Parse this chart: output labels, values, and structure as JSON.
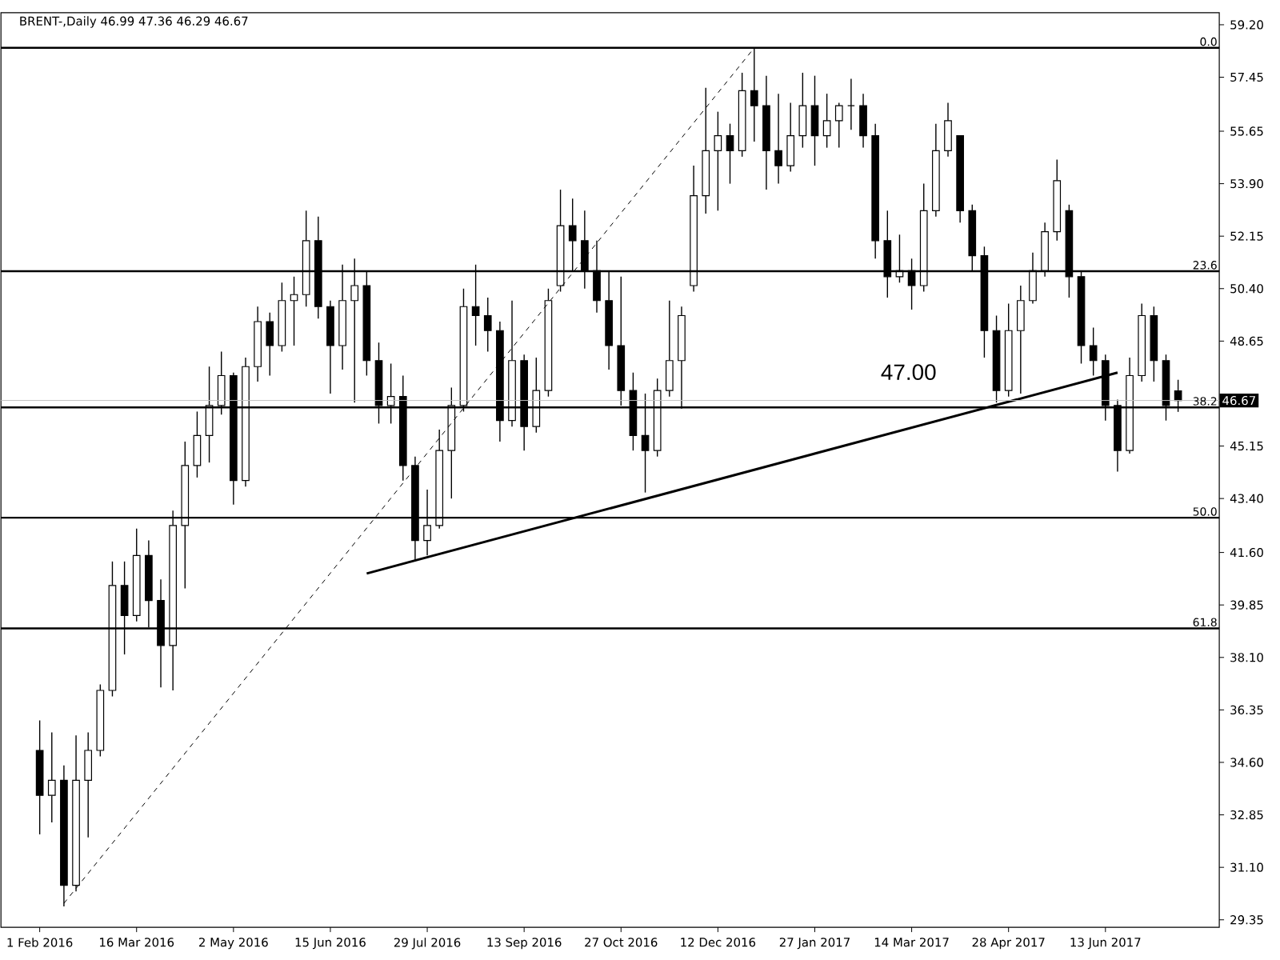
{
  "chart_data": {
    "type": "candlestick",
    "title": "BRENT-,Daily 46.99 47.36 46.29 46.67",
    "categories": [
      "1 Feb 2016",
      null,
      null,
      null,
      null,
      null,
      null,
      null,
      "16 Mar 2016",
      null,
      null,
      null,
      null,
      null,
      null,
      null,
      "2 May 2016",
      null,
      null,
      null,
      null,
      null,
      null,
      null,
      "15 Jun 2016",
      null,
      null,
      null,
      null,
      null,
      null,
      null,
      "29 Jul 2016",
      null,
      null,
      null,
      null,
      null,
      null,
      null,
      "13 Sep 2016",
      null,
      null,
      null,
      null,
      null,
      null,
      null,
      "27 Oct 2016",
      null,
      null,
      null,
      null,
      null,
      null,
      null,
      "12 Dec 2016",
      null,
      null,
      null,
      null,
      null,
      null,
      null,
      "27 Jan 2017",
      null,
      null,
      null,
      null,
      null,
      null,
      null,
      "14 Mar 2017",
      null,
      null,
      null,
      null,
      null,
      null,
      null,
      "28 Apr 2017",
      null,
      null,
      null,
      null,
      null,
      null,
      null,
      "13 Jun 2017",
      null,
      null,
      null,
      null,
      null,
      null
    ],
    "series": [
      {
        "color": "#000000",
        "ohlc": [
          [
            35.0,
            36.0,
            32.2,
            33.5
          ],
          [
            33.5,
            35.6,
            32.6,
            34.0
          ],
          [
            34.0,
            34.5,
            29.8,
            30.5
          ],
          [
            30.5,
            35.5,
            30.3,
            34.0
          ],
          [
            34.0,
            35.6,
            32.1,
            35.0
          ],
          [
            35.0,
            37.2,
            34.8,
            37.0
          ],
          [
            37.0,
            41.3,
            36.8,
            40.5
          ],
          [
            40.5,
            41.3,
            38.2,
            39.5
          ],
          [
            39.5,
            42.4,
            39.3,
            41.5
          ],
          [
            41.5,
            42.0,
            39.1,
            40.0
          ],
          [
            40.0,
            40.7,
            37.1,
            38.5
          ],
          [
            38.5,
            43.0,
            37.0,
            42.5
          ],
          [
            42.5,
            45.3,
            40.4,
            44.5
          ],
          [
            44.5,
            46.3,
            44.1,
            45.5
          ],
          [
            45.5,
            47.8,
            44.6,
            46.5
          ],
          [
            46.5,
            48.3,
            46.2,
            47.5
          ],
          [
            47.5,
            47.6,
            43.2,
            44.0
          ],
          [
            44.0,
            48.1,
            43.8,
            47.8
          ],
          [
            47.8,
            49.8,
            47.3,
            49.3
          ],
          [
            49.3,
            49.6,
            47.5,
            48.5
          ],
          [
            48.5,
            50.6,
            48.3,
            50.0
          ],
          [
            50.0,
            50.8,
            48.5,
            50.2
          ],
          [
            50.2,
            53.0,
            49.8,
            52.0
          ],
          [
            52.0,
            52.8,
            49.4,
            49.8
          ],
          [
            49.8,
            50.0,
            46.9,
            48.5
          ],
          [
            48.5,
            51.2,
            47.7,
            50.0
          ],
          [
            50.0,
            51.4,
            46.6,
            50.5
          ],
          [
            50.5,
            51.0,
            47.5,
            48.0
          ],
          [
            48.0,
            48.6,
            45.9,
            46.5
          ],
          [
            46.5,
            47.9,
            45.9,
            46.8
          ],
          [
            46.8,
            47.5,
            44.0,
            44.5
          ],
          [
            44.5,
            44.8,
            41.3,
            42.0
          ],
          [
            42.0,
            43.7,
            41.5,
            42.5
          ],
          [
            42.5,
            45.7,
            42.4,
            45.0
          ],
          [
            45.0,
            47.1,
            43.4,
            46.5
          ],
          [
            46.5,
            50.4,
            46.3,
            49.8
          ],
          [
            49.8,
            51.2,
            48.5,
            49.5
          ],
          [
            49.5,
            50.1,
            48.3,
            49.0
          ],
          [
            49.0,
            49.3,
            45.3,
            46.0
          ],
          [
            46.0,
            50.0,
            45.8,
            48.0
          ],
          [
            48.0,
            48.2,
            45.0,
            45.8
          ],
          [
            45.8,
            48.1,
            45.6,
            47.0
          ],
          [
            47.0,
            50.4,
            46.8,
            50.0
          ],
          [
            50.5,
            53.7,
            50.3,
            52.5
          ],
          [
            52.5,
            53.4,
            51.0,
            52.0
          ],
          [
            52.0,
            53.0,
            50.4,
            51.0
          ],
          [
            51.0,
            52.0,
            49.6,
            50.0
          ],
          [
            50.0,
            51.0,
            47.7,
            48.5
          ],
          [
            48.5,
            50.8,
            46.5,
            47.0
          ],
          [
            47.0,
            47.6,
            45.0,
            45.5
          ],
          [
            45.5,
            46.9,
            43.6,
            45.0
          ],
          [
            45.0,
            47.4,
            44.8,
            47.0
          ],
          [
            47.0,
            50.0,
            46.8,
            48.0
          ],
          [
            48.0,
            49.8,
            46.4,
            49.5
          ],
          [
            50.5,
            54.5,
            50.3,
            53.5
          ],
          [
            53.5,
            57.1,
            52.9,
            55.0
          ],
          [
            55.0,
            56.3,
            53.0,
            55.5
          ],
          [
            55.5,
            55.9,
            53.9,
            55.0
          ],
          [
            55.0,
            57.6,
            54.8,
            57.0
          ],
          [
            57.0,
            58.4,
            55.3,
            56.5
          ],
          [
            56.5,
            57.5,
            53.7,
            55.0
          ],
          [
            55.0,
            56.9,
            53.9,
            54.5
          ],
          [
            54.5,
            56.6,
            54.3,
            55.5
          ],
          [
            55.5,
            57.6,
            55.1,
            56.5
          ],
          [
            56.5,
            57.5,
            54.5,
            55.5
          ],
          [
            55.5,
            56.9,
            55.1,
            56.0
          ],
          [
            56.0,
            56.6,
            55.1,
            56.5
          ],
          [
            56.5,
            57.4,
            55.7,
            56.5
          ],
          [
            56.5,
            56.9,
            55.1,
            55.5
          ],
          [
            55.5,
            55.9,
            51.4,
            52.0
          ],
          [
            52.0,
            53.0,
            50.1,
            50.8
          ],
          [
            50.8,
            52.2,
            50.6,
            51.0
          ],
          [
            51.0,
            51.4,
            49.7,
            50.5
          ],
          [
            50.5,
            53.9,
            50.3,
            53.0
          ],
          [
            53.0,
            55.9,
            52.8,
            55.0
          ],
          [
            55.0,
            56.6,
            54.8,
            56.0
          ],
          [
            55.5,
            55.5,
            52.6,
            53.0
          ],
          [
            53.0,
            53.2,
            51.0,
            51.5
          ],
          [
            51.5,
            51.8,
            48.1,
            49.0
          ],
          [
            49.0,
            49.5,
            46.6,
            47.0
          ],
          [
            47.0,
            49.9,
            46.8,
            49.0
          ],
          [
            49.0,
            50.5,
            46.9,
            50.0
          ],
          [
            50.0,
            51.6,
            49.9,
            51.0
          ],
          [
            51.0,
            52.6,
            50.8,
            52.3
          ],
          [
            52.3,
            54.7,
            52.0,
            54.0
          ],
          [
            53.0,
            53.2,
            50.1,
            50.8
          ],
          [
            50.8,
            51.0,
            47.9,
            48.5
          ],
          [
            48.5,
            49.1,
            47.5,
            48.0
          ],
          [
            48.0,
            48.2,
            46.0,
            46.5
          ],
          [
            46.5,
            46.7,
            44.3,
            45.0
          ],
          [
            45.0,
            48.1,
            44.9,
            47.5
          ],
          [
            47.5,
            49.9,
            47.3,
            49.5
          ],
          [
            49.5,
            49.8,
            47.3,
            48.0
          ],
          [
            48.0,
            48.2,
            46.0,
            46.5
          ],
          [
            46.99,
            47.36,
            46.29,
            46.67
          ]
        ]
      },
      {
        "type": "line",
        "color": "#000000",
        "line_style": "solid",
        "values": [
          null,
          null,
          null,
          null,
          null,
          null,
          null,
          null,
          null,
          null,
          null,
          null,
          null,
          null,
          null,
          null,
          null,
          null,
          null,
          null,
          null,
          null,
          null,
          null,
          null,
          null,
          null,
          40.9,
          null,
          null,
          null,
          null,
          null,
          null,
          null,
          null,
          null,
          null,
          null,
          null,
          null,
          null,
          null,
          null,
          null,
          null,
          null,
          null,
          null,
          null,
          null,
          null,
          null,
          null,
          null,
          null,
          null,
          null,
          null,
          null,
          null,
          null,
          null,
          null,
          null,
          null,
          null,
          null,
          null,
          null,
          null,
          null,
          null,
          null,
          null,
          null,
          null,
          null,
          null,
          null,
          null,
          null,
          null,
          null,
          null,
          null,
          null,
          null,
          null,
          47.6,
          null,
          null,
          null,
          null,
          null
        ]
      },
      {
        "type": "line",
        "color": "#000000",
        "line_style": "dashed",
        "values": [
          null,
          null,
          29.9,
          null,
          null,
          null,
          null,
          null,
          null,
          null,
          null,
          null,
          null,
          null,
          null,
          null,
          null,
          null,
          null,
          null,
          null,
          null,
          null,
          null,
          null,
          null,
          null,
          null,
          null,
          null,
          null,
          null,
          null,
          null,
          null,
          null,
          null,
          null,
          null,
          null,
          null,
          null,
          null,
          null,
          null,
          null,
          null,
          null,
          null,
          null,
          null,
          null,
          null,
          null,
          null,
          null,
          null,
          null,
          null,
          58.43,
          null,
          null,
          null,
          null,
          null,
          null,
          null,
          null,
          null,
          null,
          null,
          null,
          null,
          null,
          null,
          null,
          null,
          null,
          null,
          null,
          null,
          null,
          null,
          null,
          null,
          null,
          null,
          null,
          null,
          null,
          null,
          null,
          null,
          null,
          null
        ]
      }
    ],
    "ylim": [
      29.1,
      59.6
    ],
    "yticks": [
      29.35,
      {
        "value": 31.1,
        "label": "31.10"
      },
      32.85,
      {
        "value": 34.6,
        "label": "34.60"
      },
      36.35,
      {
        "value": 38.1,
        "label": "38.10"
      },
      39.85,
      {
        "value": 41.6,
        "label": "41.60"
      },
      {
        "value": 43.4,
        "label": "43.40"
      },
      45.15,
      48.65,
      {
        "value": 50.4,
        "label": "50.40"
      },
      52.15,
      {
        "value": 53.9,
        "label": "53.90"
      },
      55.65,
      57.45,
      {
        "value": 59.2,
        "label": "59.20"
      }
    ],
    "ref_lines": [
      {
        "axis": "y",
        "value": 58.43,
        "color": "#000000"
      },
      {
        "axis": "y",
        "value": 50.98,
        "color": "#000000"
      },
      {
        "axis": "y",
        "value": 46.44,
        "color": "#000000"
      },
      {
        "axis": "y",
        "value": 42.76,
        "color": "#000000"
      },
      {
        "axis": "y",
        "value": 39.07,
        "color": "#000000"
      },
      {
        "axis": "y",
        "value": 46.67,
        "label": "46.67",
        "color": "#c0c0c0"
      }
    ],
    "annotations": [
      "47.00",
      {
        "text": "0.0",
        "y": 58.43
      },
      {
        "text": "23.6",
        "y": 50.98
      },
      {
        "text": "38.2",
        "y": 46.44
      },
      {
        "text": "50.0",
        "y": 42.76
      },
      {
        "text": "61.8",
        "y": 39.07
      }
    ],
    "grid": false
  }
}
